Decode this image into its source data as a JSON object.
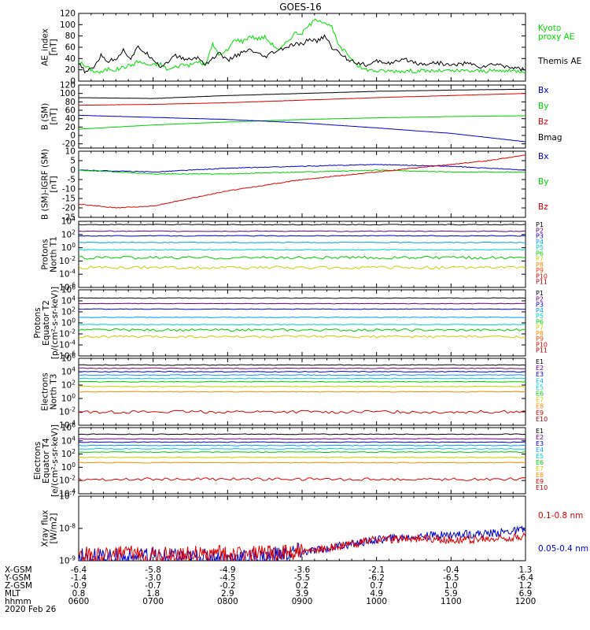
{
  "title": "GOES-16",
  "chart_data": [
    {
      "type": "line",
      "panel": "ae_index",
      "ylabel": [
        "AE_index",
        "[nT]"
      ],
      "ylim": [
        0,
        120
      ],
      "ticks": [
        "0",
        "20",
        "40",
        "60",
        "80",
        "100",
        "120"
      ],
      "tick_values": [
        0,
        20,
        40,
        60,
        80,
        100,
        120
      ],
      "legend": [
        {
          "lines": [
            "Kyoto",
            "proxy AE"
          ],
          "color": "#00dd00"
        },
        {
          "lines": [
            "Themis AE"
          ],
          "color": "#000000"
        }
      ],
      "series": [
        {
          "name": "Kyoto proxy AE",
          "color": "#00dd00",
          "x": [
            6.0,
            6.1,
            6.2,
            6.3,
            6.4,
            6.5,
            6.6,
            6.7,
            6.8,
            6.9,
            7.0,
            7.1,
            7.2,
            7.3,
            7.4,
            7.5,
            7.6,
            7.7,
            7.8,
            7.9,
            8.0,
            8.1,
            8.2,
            8.3,
            8.4,
            8.5,
            8.6,
            8.7,
            8.8,
            8.9,
            9.0,
            9.1,
            9.2,
            9.3,
            9.4,
            9.5,
            9.6,
            9.7,
            9.8,
            9.9,
            10.0,
            10.5,
            11.0,
            11.5,
            12.0
          ],
          "values": [
            35,
            25,
            18,
            15,
            22,
            20,
            25,
            28,
            35,
            30,
            28,
            30,
            20,
            25,
            30,
            28,
            35,
            28,
            65,
            45,
            55,
            75,
            70,
            80,
            75,
            78,
            65,
            55,
            70,
            85,
            85,
            100,
            110,
            105,
            95,
            60,
            50,
            35,
            22,
            20,
            18,
            18,
            18,
            18,
            18
          ]
        },
        {
          "name": "Themis AE",
          "color": "#000000",
          "x": [
            6.0,
            6.1,
            6.2,
            6.3,
            6.4,
            6.5,
            6.6,
            6.7,
            6.8,
            6.9,
            7.0,
            7.1,
            7.2,
            7.3,
            7.4,
            7.5,
            7.6,
            7.7,
            7.8,
            7.9,
            8.0,
            8.1,
            8.2,
            8.3,
            8.4,
            8.5,
            8.6,
            8.7,
            8.8,
            8.9,
            9.0,
            9.1,
            9.2,
            9.3,
            9.4,
            9.5,
            9.6,
            9.7,
            9.8,
            9.9,
            10.0,
            10.2,
            10.4,
            10.6,
            10.8,
            11.0,
            11.2,
            11.4,
            11.6,
            11.8,
            12.0
          ],
          "values": [
            30,
            15,
            25,
            45,
            35,
            40,
            55,
            40,
            60,
            50,
            40,
            25,
            35,
            45,
            40,
            38,
            42,
            30,
            40,
            50,
            35,
            45,
            50,
            55,
            48,
            42,
            50,
            55,
            60,
            65,
            65,
            75,
            70,
            80,
            60,
            50,
            40,
            35,
            30,
            28,
            35,
            32,
            38,
            30,
            33,
            28,
            32,
            25,
            30,
            25,
            20
          ]
        }
      ]
    },
    {
      "type": "line",
      "panel": "b_sm",
      "ylabel": [
        "B (SM)",
        "[nT]"
      ],
      "ylim": [
        -30,
        120
      ],
      "ticks": [
        "-20",
        "0",
        "20",
        "40",
        "60",
        "80",
        "100",
        "120"
      ],
      "tick_values": [
        -20,
        0,
        20,
        40,
        60,
        80,
        100,
        120
      ],
      "legend": [
        {
          "lines": [
            "Bx"
          ],
          "color": "#0000cc"
        },
        {
          "lines": [
            "By"
          ],
          "color": "#00cc00"
        },
        {
          "lines": [
            "Bz"
          ],
          "color": "#dd0000"
        },
        {
          "lines": [
            "Bmag"
          ],
          "color": "#000000"
        }
      ],
      "series": [
        {
          "name": "Bmag",
          "color": "#000000",
          "x": [
            6,
            7,
            8,
            9,
            10,
            11,
            12
          ],
          "values": [
            90,
            88,
            95,
            100,
            105,
            108,
            110
          ]
        },
        {
          "name": "Bz",
          "color": "#dd0000",
          "x": [
            6,
            7,
            8,
            9,
            10,
            11,
            12
          ],
          "values": [
            72,
            74,
            78,
            84,
            90,
            95,
            100
          ]
        },
        {
          "name": "By",
          "color": "#00cc00",
          "x": [
            6,
            7,
            8,
            9,
            10,
            11,
            12
          ],
          "values": [
            15,
            25,
            32,
            38,
            42,
            45,
            47
          ]
        },
        {
          "name": "Bx",
          "color": "#0000cc",
          "x": [
            6,
            7,
            8,
            9,
            10,
            11,
            12
          ],
          "values": [
            48,
            43,
            38,
            30,
            18,
            5,
            -15
          ]
        }
      ]
    },
    {
      "type": "line",
      "panel": "b_minus_igrf",
      "ylabel": [
        "B (SM)-IGRF (SM)",
        "[nT]"
      ],
      "ylim": [
        -25,
        10
      ],
      "ticks": [
        "-25",
        "-20",
        "-15",
        "-10",
        "-5",
        "0",
        "5",
        "10"
      ],
      "tick_values": [
        -25,
        -20,
        -15,
        -10,
        -5,
        0,
        5,
        10
      ],
      "legend": [
        {
          "lines": [
            "Bx"
          ],
          "color": "#0000cc"
        },
        {
          "lines": [
            "By"
          ],
          "color": "#00cc00"
        },
        {
          "lines": [
            "Bz"
          ],
          "color": "#dd0000"
        }
      ],
      "series": [
        {
          "name": "Bx",
          "color": "#0000cc",
          "x": [
            6,
            7,
            8,
            9,
            10,
            11,
            12
          ],
          "values": [
            0,
            -1,
            1,
            2,
            3,
            2,
            0
          ]
        },
        {
          "name": "By",
          "color": "#00cc00",
          "x": [
            6,
            7,
            8,
            9,
            10,
            11,
            12
          ],
          "values": [
            0,
            -2,
            -2,
            -1,
            0,
            -1,
            -1
          ]
        },
        {
          "name": "Bz",
          "color": "#dd0000",
          "x": [
            6,
            6.5,
            7,
            7.5,
            8,
            8.5,
            9,
            9.5,
            10,
            10.5,
            11,
            11.5,
            12
          ],
          "values": [
            -18,
            -20,
            -19,
            -15,
            -11,
            -8,
            -5,
            -3,
            -1,
            1,
            3,
            5,
            8
          ]
        }
      ]
    },
    {
      "type": "line",
      "panel": "protons_t1",
      "yscale": "log",
      "ylabel": [
        "Protons",
        "North T1"
      ],
      "ylim": [
        -6,
        4
      ],
      "ticks": [
        "10-6",
        "10-4",
        "10-2",
        "100",
        "102",
        "104"
      ],
      "tick_values": [
        -6,
        -4,
        -2,
        0,
        2,
        4
      ],
      "legend_channels": [
        "P1",
        "P2",
        "P3",
        "P4",
        "P5",
        "P6",
        "P7",
        "P8",
        "P9",
        "P10",
        "P11"
      ],
      "series": [
        {
          "name": "P1",
          "color": "#000000",
          "log10_level": 3.5
        },
        {
          "name": "P2",
          "color": "#6a0080",
          "log10_level": 2.5
        },
        {
          "name": "P3",
          "color": "#0000cc",
          "log10_level": 1.8
        },
        {
          "name": "P4",
          "color": "#0099ff",
          "log10_level": 0.8
        },
        {
          "name": "P5",
          "color": "#00cccc",
          "log10_level": -0.3
        },
        {
          "name": "P6",
          "color": "#00cc00",
          "log10_level": -1.5
        },
        {
          "name": "P7",
          "color": "#cccc00",
          "log10_level": -3.0
        }
      ],
      "legend_colors": [
        "#000000",
        "#6a0080",
        "#0000cc",
        "#0099ff",
        "#00cccc",
        "#00cc00",
        "#cccc00",
        "#ff8800",
        "#ff4400",
        "#dd0000",
        "#aa0000"
      ]
    },
    {
      "type": "line",
      "panel": "protons_t2",
      "yscale": "log",
      "ylabel": [
        "Protons",
        "Equator T2",
        "[p/(cm²-s-sr-keV)]"
      ],
      "ylim": [
        -6,
        6
      ],
      "ticks": [
        "10-6",
        "10-4",
        "10-2",
        "100",
        "102",
        "104",
        "106"
      ],
      "tick_values": [
        -6,
        -4,
        -2,
        0,
        2,
        4,
        6
      ],
      "legend_channels": [
        "P1",
        "P2",
        "P3",
        "P4",
        "P5",
        "P6",
        "P7",
        "P8",
        "P9",
        "P10",
        "P11"
      ],
      "series": [
        {
          "name": "P1",
          "color": "#000000",
          "log10_level": 4.5
        },
        {
          "name": "P2",
          "color": "#6a0080",
          "log10_level": 3.5
        },
        {
          "name": "P3",
          "color": "#0000cc",
          "log10_level": 2.5
        },
        {
          "name": "P4",
          "color": "#0099ff",
          "log10_level": 1.0
        },
        {
          "name": "P5",
          "color": "#00cccc",
          "log10_level": -0.3
        },
        {
          "name": "P6",
          "color": "#00cc00",
          "log10_level": -1.3
        },
        {
          "name": "P7",
          "color": "#cccc00",
          "log10_level": -2.5
        }
      ],
      "legend_colors": [
        "#000000",
        "#6a0080",
        "#0000cc",
        "#0099ff",
        "#00cccc",
        "#00cc00",
        "#cccc00",
        "#ff8800",
        "#ff4400",
        "#dd0000",
        "#aa0000"
      ]
    },
    {
      "type": "line",
      "panel": "electrons_t3",
      "yscale": "log",
      "ylabel": [
        "Electrons",
        "North T3"
      ],
      "ylim": [
        -4,
        6
      ],
      "ticks": [
        "10-4",
        "10-2",
        "100",
        "102",
        "104",
        "106"
      ],
      "tick_values": [
        -4,
        -2,
        0,
        2,
        4,
        6
      ],
      "legend_channels": [
        "E1",
        "E2",
        "E3",
        "E4",
        "E5",
        "E6",
        "E7",
        "E8",
        "E9",
        "E10"
      ],
      "series": [
        {
          "name": "E1",
          "color": "#000000",
          "log10_level": 5.0
        },
        {
          "name": "E2",
          "color": "#6a0080",
          "log10_level": 4.5
        },
        {
          "name": "E3",
          "color": "#0000cc",
          "log10_level": 4.0
        },
        {
          "name": "E4",
          "color": "#0099ff",
          "log10_level": 3.5
        },
        {
          "name": "E5",
          "color": "#00cccc",
          "log10_level": 3.0
        },
        {
          "name": "E6",
          "color": "#00cc00",
          "log10_level": 2.5
        },
        {
          "name": "E7",
          "color": "#cccc00",
          "log10_level": 1.8
        },
        {
          "name": "E8",
          "color": "#ff8800",
          "log10_level": 1.0
        },
        {
          "name": "E9",
          "color": "#dd0000",
          "log10_level": -2.0
        }
      ],
      "legend_colors": [
        "#000000",
        "#6a0080",
        "#0000cc",
        "#00aaff",
        "#00cccc",
        "#00cc00",
        "#cccc00",
        "#ff8800",
        "#dd0000",
        "#aa0000"
      ]
    },
    {
      "type": "line",
      "panel": "electrons_t4",
      "yscale": "log",
      "ylabel": [
        "Electrons",
        "Equator T4",
        "[e/(cm²-s-sr-keV)]"
      ],
      "ylim": [
        -4,
        6
      ],
      "ticks": [
        "10-4",
        "10-2",
        "100",
        "102",
        "104",
        "106"
      ],
      "tick_values": [
        -4,
        -2,
        0,
        2,
        4,
        6
      ],
      "legend_channels": [
        "E1",
        "E2",
        "E3",
        "E4",
        "E5",
        "E6",
        "E7",
        "E8",
        "E9",
        "E10"
      ],
      "series": [
        {
          "name": "E1",
          "color": "#000000",
          "log10_level": 5.0
        },
        {
          "name": "E2",
          "color": "#6a0080",
          "log10_level": 4.3
        },
        {
          "name": "E3",
          "color": "#0000cc",
          "log10_level": 3.8
        },
        {
          "name": "E4",
          "color": "#0099ff",
          "log10_level": 3.3
        },
        {
          "name": "E5",
          "color": "#00cccc",
          "log10_level": 2.8
        },
        {
          "name": "E6",
          "color": "#00cc00",
          "log10_level": 2.3
        },
        {
          "name": "E7",
          "color": "#cccc00",
          "log10_level": 1.5
        },
        {
          "name": "E8",
          "color": "#ff8800",
          "log10_level": 0.7
        },
        {
          "name": "E9",
          "color": "#dd0000",
          "log10_level": -1.8
        }
      ],
      "legend_colors": [
        "#000000",
        "#6a0080",
        "#0000cc",
        "#00aaff",
        "#00cccc",
        "#00cc00",
        "#cccc00",
        "#ff8800",
        "#dd0000",
        "#aa0000"
      ]
    },
    {
      "type": "line",
      "panel": "xray",
      "yscale": "log",
      "ylabel": [
        "Xray flux",
        "[W/m2]"
      ],
      "ylim": [
        -9,
        -7
      ],
      "ticks": [
        "10-9",
        "10-8",
        "10-7"
      ],
      "tick_values": [
        -9,
        -8,
        -7
      ],
      "legend": [
        {
          "lines": [
            "0.1-0.8 nm"
          ],
          "color": "#dd0000"
        },
        {
          "lines": [
            "0.05-0.4 nm"
          ],
          "color": "#0000cc"
        }
      ],
      "series": [
        {
          "name": "0.05-0.4 nm",
          "color": "#0000cc",
          "x": [
            6,
            7,
            8,
            8.5,
            9,
            9.5,
            10,
            10.5,
            11,
            11.5,
            12
          ],
          "values": [
            -9.0,
            -9.0,
            -9.0,
            -9.0,
            -8.8,
            -8.6,
            -8.4,
            -8.3,
            -8.25,
            -8.2,
            -8.1
          ]
        },
        {
          "name": "0.1-0.8 nm",
          "color": "#dd0000",
          "x": [
            6,
            7,
            8,
            8.5,
            9,
            9.5,
            10,
            10.5,
            11,
            11.5,
            12
          ],
          "values": [
            -8.95,
            -8.9,
            -8.9,
            -8.9,
            -8.8,
            -8.6,
            -8.4,
            -8.35,
            -8.4,
            -8.4,
            -8.3
          ]
        }
      ]
    }
  ],
  "ephemeris": {
    "labels": [
      "X-GSM",
      "Y-GSM",
      "Z-GSM",
      "MLT",
      "hhmm",
      "2020 Feb 26"
    ],
    "columns": [
      [
        "-6.4",
        "-1.4",
        "-0.9",
        "0.8",
        "0600"
      ],
      [
        "-5.8",
        "-3.0",
        "-0.7",
        "1.8",
        "0700"
      ],
      [
        "-4.9",
        "-4.5",
        "-0.2",
        "2.9",
        "0800"
      ],
      [
        "-3.6",
        "-5.5",
        "0.2",
        "3.9",
        "0900"
      ],
      [
        "-2.1",
        "-6.2",
        "0.7",
        "4.9",
        "1000"
      ],
      [
        "-0.4",
        "-6.5",
        "1.0",
        "5.9",
        "1100"
      ],
      [
        "1.3",
        "-6.4",
        "1.2",
        "6.9",
        "1200"
      ]
    ]
  }
}
